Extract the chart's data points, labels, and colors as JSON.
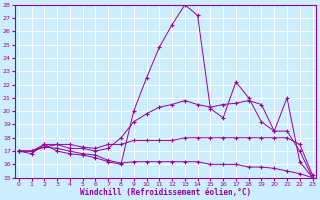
{
  "xlabel": "Windchill (Refroidissement éolien,°C)",
  "xlim": [
    0,
    23
  ],
  "ylim": [
    15,
    28
  ],
  "yticks": [
    15,
    16,
    17,
    18,
    19,
    20,
    21,
    22,
    23,
    24,
    25,
    26,
    27,
    28
  ],
  "xticks": [
    0,
    1,
    2,
    3,
    4,
    5,
    6,
    7,
    8,
    9,
    10,
    11,
    12,
    13,
    14,
    15,
    16,
    17,
    18,
    19,
    20,
    21,
    22,
    23
  ],
  "bg_color": "#cceeff",
  "line_color": "#990099",
  "grid_color": "#ffffff",
  "series": [
    {
      "x": [
        0,
        1,
        2,
        3,
        4,
        5,
        6,
        7,
        8,
        9,
        10,
        11,
        12,
        13,
        14,
        15,
        16,
        17,
        18,
        19,
        20,
        21,
        22,
        23
      ],
      "y": [
        17.0,
        16.8,
        17.5,
        17.0,
        16.8,
        16.7,
        16.5,
        16.2,
        16.0,
        20.0,
        22.5,
        24.8,
        26.5,
        28.0,
        27.2,
        20.2,
        19.5,
        22.2,
        21.0,
        19.2,
        18.5,
        21.0,
        16.2,
        15.0
      ]
    },
    {
      "x": [
        0,
        1,
        2,
        3,
        4,
        5,
        6,
        7,
        8,
        9,
        10,
        11,
        12,
        13,
        14,
        15,
        16,
        17,
        18,
        19,
        20,
        21,
        22,
        23
      ],
      "y": [
        17.0,
        17.0,
        17.5,
        17.5,
        17.2,
        17.2,
        17.0,
        17.2,
        18.0,
        19.2,
        19.8,
        20.3,
        20.5,
        20.8,
        20.5,
        20.3,
        20.5,
        20.6,
        20.8,
        20.5,
        18.5,
        18.5,
        17.0,
        15.0
      ]
    },
    {
      "x": [
        0,
        1,
        2,
        3,
        4,
        5,
        6,
        7,
        8,
        9,
        10,
        11,
        12,
        13,
        14,
        15,
        16,
        17,
        18,
        19,
        20,
        21,
        22,
        23
      ],
      "y": [
        17.0,
        17.0,
        17.3,
        17.5,
        17.5,
        17.3,
        17.2,
        17.5,
        17.5,
        17.8,
        17.8,
        17.8,
        17.8,
        18.0,
        18.0,
        18.0,
        18.0,
        18.0,
        18.0,
        18.0,
        18.0,
        18.0,
        17.5,
        15.2
      ]
    },
    {
      "x": [
        0,
        1,
        2,
        3,
        4,
        5,
        6,
        7,
        8,
        9,
        10,
        11,
        12,
        13,
        14,
        15,
        16,
        17,
        18,
        19,
        20,
        21,
        22,
        23
      ],
      "y": [
        17.0,
        17.0,
        17.3,
        17.2,
        17.0,
        16.8,
        16.7,
        16.3,
        16.1,
        16.2,
        16.2,
        16.2,
        16.2,
        16.2,
        16.2,
        16.0,
        16.0,
        16.0,
        15.8,
        15.8,
        15.7,
        15.5,
        15.3,
        15.0
      ]
    }
  ]
}
